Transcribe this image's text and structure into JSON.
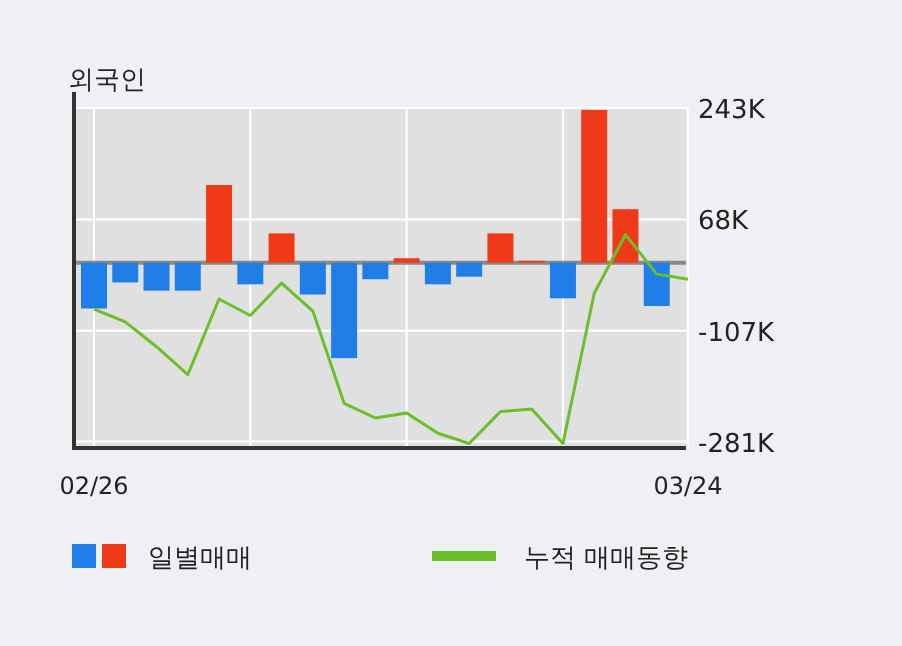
{
  "chart_data": {
    "type": "bar",
    "title": "외국인",
    "categories": [
      "02/26",
      null,
      null,
      null,
      null,
      null,
      null,
      null,
      null,
      null,
      null,
      null,
      null,
      null,
      null,
      null,
      null,
      null,
      null,
      "03/24"
    ],
    "series": [
      {
        "name": "일별매매",
        "colors": [
          "#1f7ee8",
          "#1f7ee8",
          "#1f7ee8",
          "#1f7ee8",
          "#f03a17",
          "#1f7ee8",
          "#f03a17",
          "#1f7ee8",
          "#1f7ee8",
          "#1f7ee8",
          "#f03a17",
          "#1f7ee8",
          "#1f7ee8",
          "#f03a17",
          "#f03a17",
          "#1f7ee8",
          "#f03a17",
          "#f03a17",
          "#1f7ee8",
          null
        ],
        "values": [
          -72000,
          -31000,
          -44000,
          -44000,
          122000,
          -34000,
          46000,
          -50000,
          -150000,
          -26000,
          7000,
          -34000,
          -22000,
          46000,
          3000,
          -56000,
          240000,
          84000,
          -68000,
          null
        ]
      },
      {
        "name": "누적 매매동향",
        "type": "line",
        "color": "#6abf2a",
        "values": [
          -73000,
          -93000,
          -132000,
          -176000,
          -57000,
          -83000,
          -32000,
          -76000,
          -221000,
          -244000,
          -236000,
          -268000,
          -284000,
          -234000,
          -230000,
          -284000,
          -48000,
          44000,
          -18000,
          -26000
        ]
      }
    ],
    "ylim": [
      -288000,
      243000
    ],
    "yticks": [
      {
        "value": 243000,
        "label": "243K"
      },
      {
        "value": 68000,
        "label": "68K"
      },
      {
        "value": -107000,
        "label": "-107K"
      },
      {
        "value": -281000,
        "label": "-281K"
      }
    ],
    "grid": true,
    "legend": "bottom"
  }
}
